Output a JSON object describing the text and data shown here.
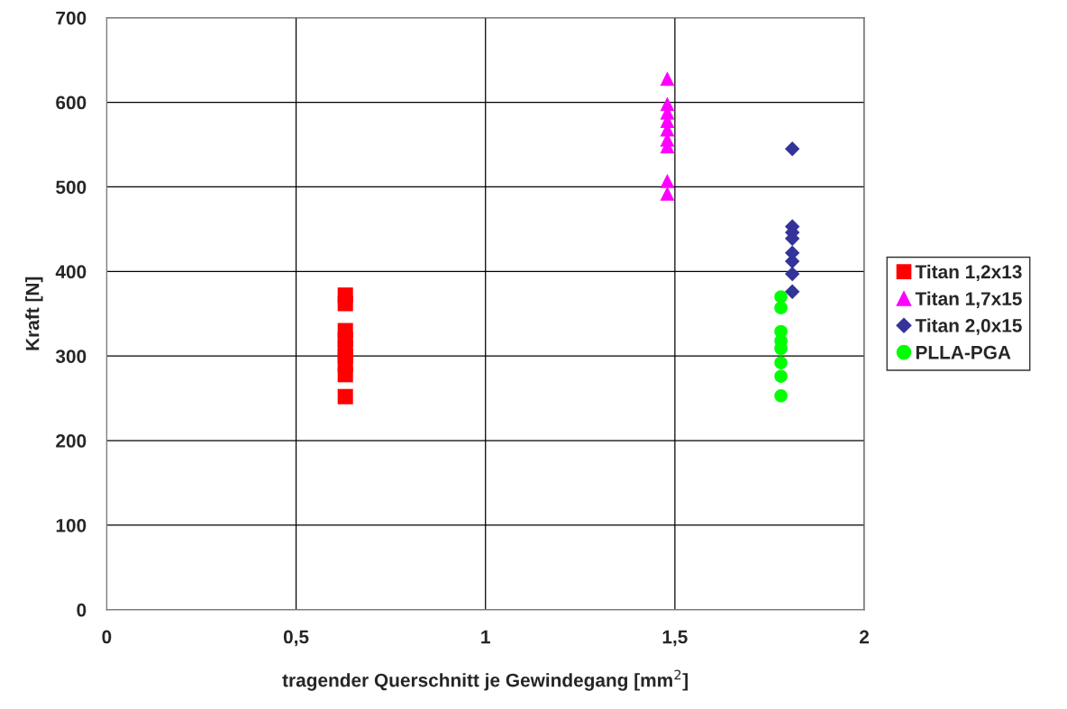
{
  "chart_data": {
    "type": "scatter",
    "xlabel": "tragender Querschnitt je Gewindegang [mm$^{2}$]",
    "ylabel": "Kraft [N]",
    "xlim": [
      0,
      2
    ],
    "xticks": [
      0,
      {
        "value": 0.5,
        "label": "0,5"
      },
      1,
      {
        "value": 1.5,
        "label": "1,5"
      },
      2
    ],
    "ylim": [
      0,
      700
    ],
    "yticks": [
      0,
      100,
      200,
      300,
      400,
      500,
      600,
      700
    ],
    "grid": true,
    "legend": "right",
    "series": [
      {
        "name": "Titan 1,2x13",
        "color": "#ff0000",
        "marker": "square",
        "x": [
          0.63,
          0.63,
          0.63,
          0.63,
          0.63,
          0.63,
          0.63,
          0.63,
          0.63
        ],
        "values": [
          372,
          362,
          330,
          320,
          310,
          300,
          290,
          278,
          252
        ]
      },
      {
        "name": "Titan 1,7x15",
        "color": "#ff00ff",
        "marker": "triangle",
        "x": [
          1.48,
          1.48,
          1.48,
          1.48,
          1.48,
          1.48,
          1.48,
          1.48,
          1.48
        ],
        "values": [
          628,
          598,
          588,
          578,
          568,
          556,
          548,
          507,
          492
        ]
      },
      {
        "name": "Titan 2,0x15",
        "color": "#333399",
        "marker": "diamond",
        "x": [
          1.81,
          1.81,
          1.81,
          1.81,
          1.81,
          1.81,
          1.81,
          1.81
        ],
        "values": [
          545,
          453,
          446,
          439,
          422,
          412,
          397,
          376
        ]
      },
      {
        "name": "PLLA-PGA",
        "color": "#00ff00",
        "marker": "circle",
        "x": [
          1.78,
          1.78,
          1.78,
          1.78,
          1.78,
          1.78,
          1.78,
          1.78
        ],
        "values": [
          370,
          357,
          329,
          318,
          309,
          292,
          276,
          253
        ]
      }
    ]
  }
}
